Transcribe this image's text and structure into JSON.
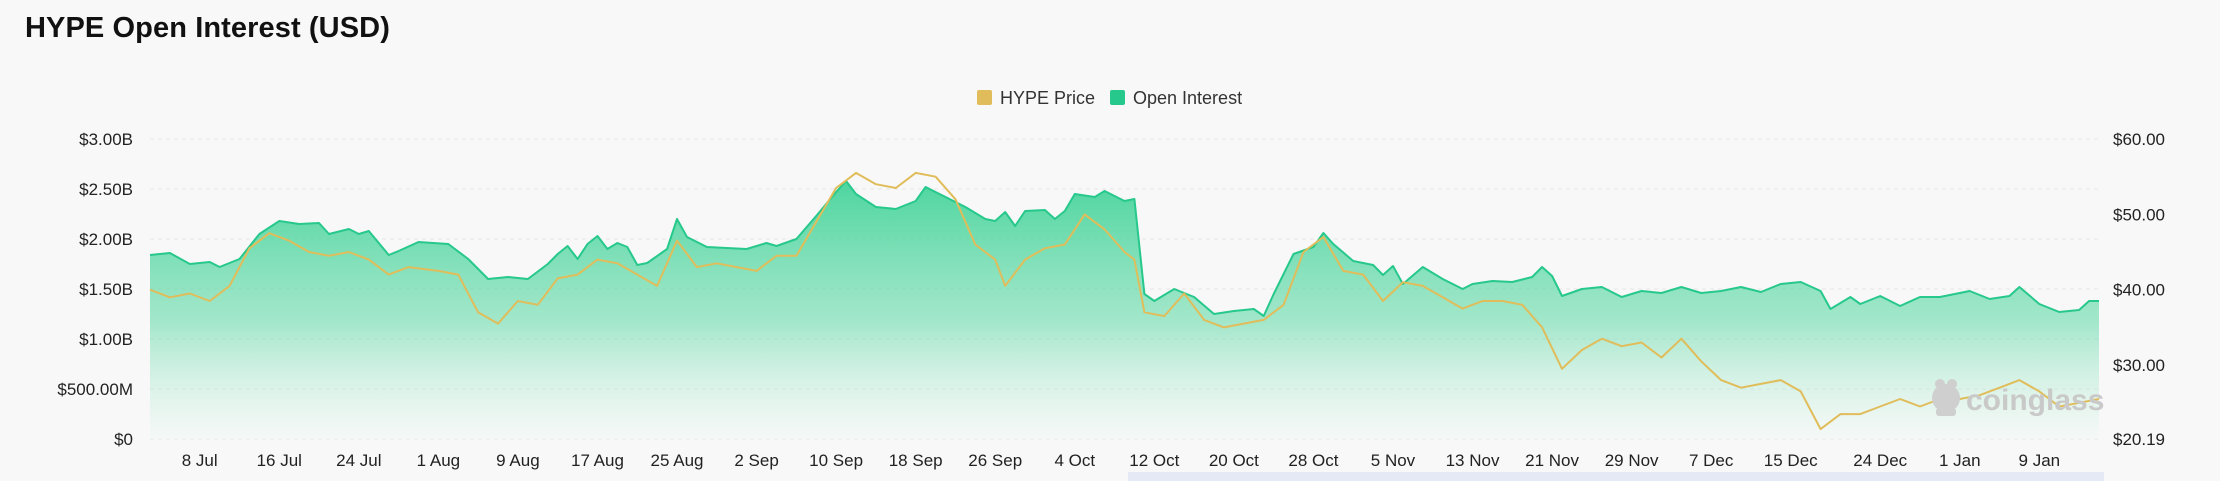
{
  "chart_data": {
    "type": "area",
    "title": "HYPE Open Interest (USD)",
    "legend": [
      {
        "name": "HYPE Price",
        "color": "#e0bd5a"
      },
      {
        "name": "Open Interest",
        "color": "#27c88c"
      }
    ],
    "legend_position": "top-center",
    "grid": true,
    "watermark": "coinglass",
    "left_axis": {
      "ticks": [
        "$0",
        "$500.00M",
        "$1.00B",
        "$1.50B",
        "$2.00B",
        "$2.50B",
        "$3.00B"
      ],
      "ylim": [
        0,
        3000000000
      ]
    },
    "right_axis": {
      "ticks": [
        "$20.19",
        "$30.00",
        "$40.00",
        "$50.00",
        "$60.00"
      ],
      "ylim": [
        20.19,
        60
      ]
    },
    "x_ticks": [
      "8 Jul",
      "16 Jul",
      "24 Jul",
      "1 Aug",
      "9 Aug",
      "17 Aug",
      "25 Aug",
      "2 Sep",
      "10 Sep",
      "18 Sep",
      "26 Sep",
      "4 Oct",
      "12 Oct",
      "20 Oct",
      "28 Oct",
      "5 Nov",
      "13 Nov",
      "21 Nov",
      "29 Nov",
      "7 Dec",
      "15 Dec",
      "24 Dec",
      "1 Jan",
      "9 Jan"
    ],
    "x_range": [
      "2025-07-03",
      "2026-01-15"
    ],
    "series": [
      {
        "name": "Open Interest",
        "color": "#27c88c",
        "points": [
          [
            "2025-07-03",
            1840000000.0
          ],
          [
            "2025-07-05",
            1860000000.0
          ],
          [
            "2025-07-07",
            1750000000.0
          ],
          [
            "2025-07-09",
            1770000000.0
          ],
          [
            "2025-07-10",
            1720000000.0
          ],
          [
            "2025-07-12",
            1800000000.0
          ],
          [
            "2025-07-14",
            2050000000.0
          ],
          [
            "2025-07-16",
            2180000000.0
          ],
          [
            "2025-07-18",
            2150000000.0
          ],
          [
            "2025-07-20",
            2160000000.0
          ],
          [
            "2025-07-21",
            2050000000.0
          ],
          [
            "2025-07-23",
            2100000000.0
          ],
          [
            "2025-07-24",
            2050000000.0
          ],
          [
            "2025-07-25",
            2080000000.0
          ],
          [
            "2025-07-27",
            1840000000.0
          ],
          [
            "2025-07-28",
            1880000000.0
          ],
          [
            "2025-07-30",
            1970000000.0
          ],
          [
            "2025-08-02",
            1950000000.0
          ],
          [
            "2025-08-04",
            1800000000.0
          ],
          [
            "2025-08-06",
            1600000000.0
          ],
          [
            "2025-08-08",
            1620000000.0
          ],
          [
            "2025-08-10",
            1600000000.0
          ],
          [
            "2025-08-12",
            1750000000.0
          ],
          [
            "2025-08-13",
            1850000000.0
          ],
          [
            "2025-08-14",
            1930000000.0
          ],
          [
            "2025-08-15",
            1800000000.0
          ],
          [
            "2025-08-16",
            1950000000.0
          ],
          [
            "2025-08-17",
            2030000000.0
          ],
          [
            "2025-08-18",
            1900000000.0
          ],
          [
            "2025-08-19",
            1960000000.0
          ],
          [
            "2025-08-20",
            1920000000.0
          ],
          [
            "2025-08-21",
            1740000000.0
          ],
          [
            "2025-08-22",
            1760000000.0
          ],
          [
            "2025-08-24",
            1900000000.0
          ],
          [
            "2025-08-25",
            2200000000.0
          ],
          [
            "2025-08-26",
            2020000000.0
          ],
          [
            "2025-08-28",
            1920000000.0
          ],
          [
            "2025-08-30",
            1910000000.0
          ],
          [
            "2025-09-01",
            1900000000.0
          ],
          [
            "2025-09-03",
            1960000000.0
          ],
          [
            "2025-09-04",
            1930000000.0
          ],
          [
            "2025-09-06",
            2000000000.0
          ],
          [
            "2025-09-08",
            2230000000.0
          ],
          [
            "2025-09-10",
            2470000000.0
          ],
          [
            "2025-09-11",
            2580000000.0
          ],
          [
            "2025-09-12",
            2450000000.0
          ],
          [
            "2025-09-14",
            2320000000.0
          ],
          [
            "2025-09-16",
            2300000000.0
          ],
          [
            "2025-09-18",
            2380000000.0
          ],
          [
            "2025-09-19",
            2520000000.0
          ],
          [
            "2025-09-21",
            2420000000.0
          ],
          [
            "2025-09-23",
            2320000000.0
          ],
          [
            "2025-09-25",
            2200000000.0
          ],
          [
            "2025-09-26",
            2180000000.0
          ],
          [
            "2025-09-27",
            2270000000.0
          ],
          [
            "2025-09-28",
            2130000000.0
          ],
          [
            "2025-09-29",
            2280000000.0
          ],
          [
            "2025-10-01",
            2290000000.0
          ],
          [
            "2025-10-02",
            2200000000.0
          ],
          [
            "2025-10-03",
            2280000000.0
          ],
          [
            "2025-10-04",
            2450000000.0
          ],
          [
            "2025-10-06",
            2420000000.0
          ],
          [
            "2025-10-07",
            2480000000.0
          ],
          [
            "2025-10-09",
            2380000000.0
          ],
          [
            "2025-10-10",
            2400000000.0
          ],
          [
            "2025-10-11",
            1450000000.0
          ],
          [
            "2025-10-12",
            1380000000.0
          ],
          [
            "2025-10-14",
            1500000000.0
          ],
          [
            "2025-10-16",
            1420000000.0
          ],
          [
            "2025-10-18",
            1250000000.0
          ],
          [
            "2025-10-20",
            1280000000.0
          ],
          [
            "2025-10-22",
            1300000000.0
          ],
          [
            "2025-10-23",
            1230000000.0
          ],
          [
            "2025-10-24",
            1450000000.0
          ],
          [
            "2025-10-26",
            1850000000.0
          ],
          [
            "2025-10-28",
            1920000000.0
          ],
          [
            "2025-10-29",
            2060000000.0
          ],
          [
            "2025-10-30",
            1950000000.0
          ],
          [
            "2025-11-01",
            1780000000.0
          ],
          [
            "2025-11-03",
            1740000000.0
          ],
          [
            "2025-11-04",
            1640000000.0
          ],
          [
            "2025-11-05",
            1730000000.0
          ],
          [
            "2025-11-06",
            1550000000.0
          ],
          [
            "2025-11-08",
            1720000000.0
          ],
          [
            "2025-11-10",
            1600000000.0
          ],
          [
            "2025-11-12",
            1500000000.0
          ],
          [
            "2025-11-13",
            1550000000.0
          ],
          [
            "2025-11-15",
            1580000000.0
          ],
          [
            "2025-11-17",
            1570000000.0
          ],
          [
            "2025-11-19",
            1620000000.0
          ],
          [
            "2025-11-20",
            1720000000.0
          ],
          [
            "2025-11-21",
            1630000000.0
          ],
          [
            "2025-11-22",
            1430000000.0
          ],
          [
            "2025-11-24",
            1500000000.0
          ],
          [
            "2025-11-26",
            1520000000.0
          ],
          [
            "2025-11-28",
            1420000000.0
          ],
          [
            "2025-11-30",
            1480000000.0
          ],
          [
            "2025-12-02",
            1460000000.0
          ],
          [
            "2025-12-04",
            1520000000.0
          ],
          [
            "2025-12-06",
            1460000000.0
          ],
          [
            "2025-12-08",
            1480000000.0
          ],
          [
            "2025-12-10",
            1520000000.0
          ],
          [
            "2025-12-12",
            1470000000.0
          ],
          [
            "2025-12-14",
            1550000000.0
          ],
          [
            "2025-12-16",
            1570000000.0
          ],
          [
            "2025-12-18",
            1480000000.0
          ],
          [
            "2025-12-19",
            1300000000.0
          ],
          [
            "2025-12-21",
            1420000000.0
          ],
          [
            "2025-12-22",
            1350000000.0
          ],
          [
            "2025-12-24",
            1430000000.0
          ],
          [
            "2025-12-26",
            1330000000.0
          ],
          [
            "2025-12-28",
            1420000000.0
          ],
          [
            "2025-12-30",
            1420000000.0
          ],
          [
            "2026-01-02",
            1480000000.0
          ],
          [
            "2026-01-04",
            1400000000.0
          ],
          [
            "2026-01-06",
            1430000000.0
          ],
          [
            "2026-01-07",
            1520000000.0
          ],
          [
            "2026-01-09",
            1350000000.0
          ],
          [
            "2026-01-11",
            1270000000.0
          ],
          [
            "2026-01-13",
            1290000000.0
          ],
          [
            "2026-01-14",
            1380000000.0
          ],
          [
            "2026-01-15",
            1380000000.0
          ]
        ]
      },
      {
        "name": "HYPE Price",
        "color": "#e0bd5a",
        "points": [
          [
            "2025-07-03",
            40.0
          ],
          [
            "2025-07-05",
            39.0
          ],
          [
            "2025-07-07",
            39.5
          ],
          [
            "2025-07-09",
            38.5
          ],
          [
            "2025-07-11",
            40.5
          ],
          [
            "2025-07-13",
            45.5
          ],
          [
            "2025-07-15",
            47.5
          ],
          [
            "2025-07-17",
            46.5
          ],
          [
            "2025-07-19",
            45.0
          ],
          [
            "2025-07-21",
            44.5
          ],
          [
            "2025-07-23",
            45.0
          ],
          [
            "2025-07-25",
            44.0
          ],
          [
            "2025-07-27",
            42.0
          ],
          [
            "2025-07-29",
            43.0
          ],
          [
            "2025-08-01",
            42.5
          ],
          [
            "2025-08-03",
            42.0
          ],
          [
            "2025-08-05",
            37.0
          ],
          [
            "2025-08-07",
            35.5
          ],
          [
            "2025-08-09",
            38.5
          ],
          [
            "2025-08-11",
            38.0
          ],
          [
            "2025-08-13",
            41.5
          ],
          [
            "2025-08-15",
            42.0
          ],
          [
            "2025-08-17",
            44.0
          ],
          [
            "2025-08-19",
            43.5
          ],
          [
            "2025-08-21",
            42.0
          ],
          [
            "2025-08-23",
            40.5
          ],
          [
            "2025-08-25",
            46.5
          ],
          [
            "2025-08-27",
            43.0
          ],
          [
            "2025-08-29",
            43.5
          ],
          [
            "2025-08-31",
            43.0
          ],
          [
            "2025-09-02",
            42.5
          ],
          [
            "2025-09-04",
            44.5
          ],
          [
            "2025-09-06",
            44.5
          ],
          [
            "2025-09-08",
            49.0
          ],
          [
            "2025-09-10",
            53.5
          ],
          [
            "2025-09-12",
            55.5
          ],
          [
            "2025-09-14",
            54.0
          ],
          [
            "2025-09-16",
            53.5
          ],
          [
            "2025-09-18",
            55.5
          ],
          [
            "2025-09-20",
            55.0
          ],
          [
            "2025-09-22",
            52.0
          ],
          [
            "2025-09-24",
            46.0
          ],
          [
            "2025-09-26",
            44.0
          ],
          [
            "2025-09-27",
            40.5
          ],
          [
            "2025-09-29",
            44.0
          ],
          [
            "2025-10-01",
            45.5
          ],
          [
            "2025-10-03",
            46.0
          ],
          [
            "2025-10-05",
            50.0
          ],
          [
            "2025-10-07",
            48.0
          ],
          [
            "2025-10-09",
            45.0
          ],
          [
            "2025-10-10",
            44.0
          ],
          [
            "2025-10-11",
            37.0
          ],
          [
            "2025-10-13",
            36.5
          ],
          [
            "2025-10-15",
            39.5
          ],
          [
            "2025-10-17",
            36.0
          ],
          [
            "2025-10-19",
            35.0
          ],
          [
            "2025-10-21",
            35.5
          ],
          [
            "2025-10-23",
            36.0
          ],
          [
            "2025-10-25",
            38.0
          ],
          [
            "2025-10-27",
            45.0
          ],
          [
            "2025-10-29",
            47.0
          ],
          [
            "2025-10-31",
            42.5
          ],
          [
            "2025-11-02",
            42.0
          ],
          [
            "2025-11-04",
            38.5
          ],
          [
            "2025-11-06",
            41.0
          ],
          [
            "2025-11-08",
            40.5
          ],
          [
            "2025-11-10",
            39.0
          ],
          [
            "2025-11-12",
            37.5
          ],
          [
            "2025-11-14",
            38.5
          ],
          [
            "2025-11-16",
            38.5
          ],
          [
            "2025-11-18",
            38.0
          ],
          [
            "2025-11-20",
            35.0
          ],
          [
            "2025-11-22",
            29.5
          ],
          [
            "2025-11-24",
            32.0
          ],
          [
            "2025-11-26",
            33.5
          ],
          [
            "2025-11-28",
            32.5
          ],
          [
            "2025-11-30",
            33.0
          ],
          [
            "2025-12-02",
            31.0
          ],
          [
            "2025-12-04",
            33.5
          ],
          [
            "2025-12-06",
            30.5
          ],
          [
            "2025-12-08",
            28.0
          ],
          [
            "2025-12-10",
            27.0
          ],
          [
            "2025-12-12",
            27.5
          ],
          [
            "2025-12-14",
            28.0
          ],
          [
            "2025-12-16",
            26.5
          ],
          [
            "2025-12-18",
            21.5
          ],
          [
            "2025-12-20",
            23.5
          ],
          [
            "2025-12-22",
            23.5
          ],
          [
            "2025-12-24",
            24.5
          ],
          [
            "2025-12-26",
            25.5
          ],
          [
            "2025-12-28",
            24.5
          ],
          [
            "2025-12-30",
            25.5
          ],
          [
            "2026-01-01",
            25.5
          ],
          [
            "2026-01-03",
            26.0
          ],
          [
            "2026-01-05",
            27.0
          ],
          [
            "2026-01-07",
            28.0
          ],
          [
            "2026-01-09",
            26.5
          ],
          [
            "2026-01-11",
            24.5
          ],
          [
            "2026-01-13",
            25.0
          ],
          [
            "2026-01-15",
            25.5
          ]
        ]
      }
    ]
  }
}
